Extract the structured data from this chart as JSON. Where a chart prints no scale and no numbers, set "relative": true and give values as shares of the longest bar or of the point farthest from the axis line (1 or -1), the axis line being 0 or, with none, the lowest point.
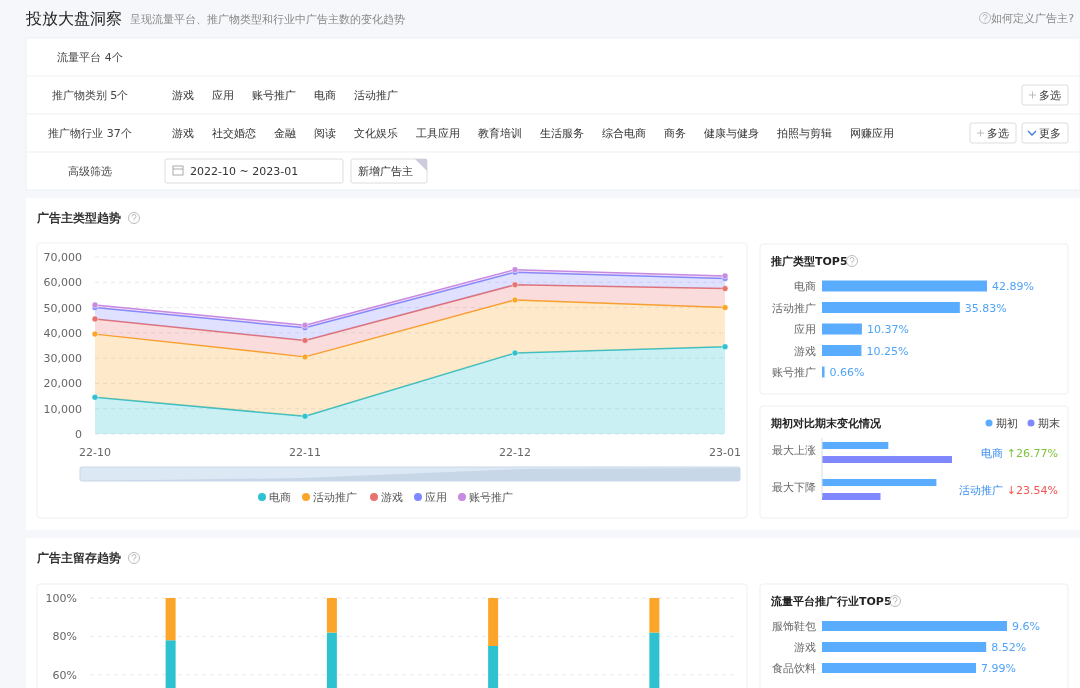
{
  "chart_data": [
    {
      "type": "other",
      "title": "投放大盘洞察",
      "subtitle": "呈现流量平台、推广物类型和行业中广告主数的变化趋势",
      "annotations": [
        "如何定义广告主?",
        "流量平台 4个",
        "推广物类别 5个",
        "游戏",
        "应用",
        "账号推广",
        "电商",
        "活动推广",
        "多选",
        "推广物行业 37个",
        "游戏",
        "社交婚恋",
        "金融",
        "阅读",
        "文化娱乐",
        "工具应用",
        "教育培训",
        "生活服务",
        "综合电商",
        "商务",
        "健康与健身",
        "拍照与剪辑",
        "网赚应用",
        "多选",
        "更多",
        "高级筛选",
        "2022-10 ~ 2023-01",
        "新增广告主"
      ]
    },
    {
      "type": "area",
      "title": "广告主类型趋势",
      "stacked": true,
      "categories": [
        "22-10",
        "22-11",
        "22-12",
        "23-01"
      ],
      "ylim": [
        0,
        70000
      ],
      "yticks": [
        {
          "value": 0,
          "label": "0"
        },
        {
          "value": 10000,
          "label": "10,000"
        },
        {
          "value": 20000,
          "label": "20,000"
        },
        {
          "value": 30000,
          "label": "30,000"
        },
        {
          "value": 40000,
          "label": "40,000"
        },
        {
          "value": 50000,
          "label": "50,000"
        },
        {
          "value": 60000,
          "label": "60,000"
        },
        {
          "value": 70000,
          "label": "70,000"
        }
      ],
      "grid": "y",
      "legend": "bottom",
      "marker": "circle",
      "series": [
        {
          "name": "电商",
          "color": "#2ec2d0",
          "values": [
            14500,
            7000,
            32000,
            34500
          ]
        },
        {
          "name": "活动推广",
          "color": "#fba62a",
          "values": [
            25000,
            23500,
            21000,
            15500
          ]
        },
        {
          "name": "游戏",
          "color": "#e8726f",
          "values": [
            6000,
            6500,
            6000,
            7500
          ]
        },
        {
          "name": "应用",
          "color": "#8088ff",
          "values": [
            4500,
            5000,
            5000,
            4000
          ]
        },
        {
          "name": "账号推广",
          "color": "#c78ae0",
          "values": [
            1000,
            1000,
            1000,
            1000
          ]
        }
      ]
    },
    {
      "type": "bar",
      "orientation": "horizontal",
      "title": "推广类型TOP5",
      "categories": [
        "电商",
        "活动推广",
        "应用",
        "游戏",
        "账号推广"
      ],
      "values": [
        42.89,
        35.83,
        10.37,
        10.25,
        0.66
      ],
      "value_labels": [
        "42.89%",
        "35.83%",
        "10.37%",
        "10.25%",
        "0.66%"
      ],
      "color": "#5aacff"
    },
    {
      "type": "bar",
      "orientation": "horizontal",
      "relative": true,
      "title": "期初对比期末变化情况",
      "categories": [
        "最大上涨",
        "最大下降"
      ],
      "legend": "top right",
      "series": [
        {
          "name": "期初",
          "color": "#5aacff",
          "values": [
            0.51,
            0.88
          ]
        },
        {
          "name": "期末",
          "color": "#8088ff",
          "values": [
            1,
            0.45
          ]
        }
      ],
      "annotations": [
        "电商",
        "↑26.77%",
        "活动推广",
        "↓23.54%"
      ]
    },
    {
      "type": "bar",
      "stacked": true,
      "title": "广告主留存趋势",
      "categories": [
        null,
        null,
        null,
        null
      ],
      "ylim": [
        0,
        100
      ],
      "yticks": [
        {
          "value": 60,
          "label": "60%"
        },
        {
          "value": 80,
          "label": "80%"
        },
        {
          "value": 100,
          "label": "100%"
        }
      ],
      "grid": "y",
      "series": [
        {
          "color": "#2ec2d0",
          "values": [
            78,
            82,
            75,
            82
          ]
        },
        {
          "color": "#fba62a",
          "values": [
            22,
            18,
            25,
            18
          ]
        }
      ]
    },
    {
      "type": "bar",
      "orientation": "horizontal",
      "title": "流量平台推广行业TOP5",
      "categories": [
        "服饰鞋包",
        "游戏",
        "食品饮料"
      ],
      "values": [
        9.6,
        8.52,
        7.99
      ],
      "value_labels": [
        "9.6%",
        "8.52%",
        "7.99%"
      ],
      "color": "#5aacff"
    }
  ]
}
